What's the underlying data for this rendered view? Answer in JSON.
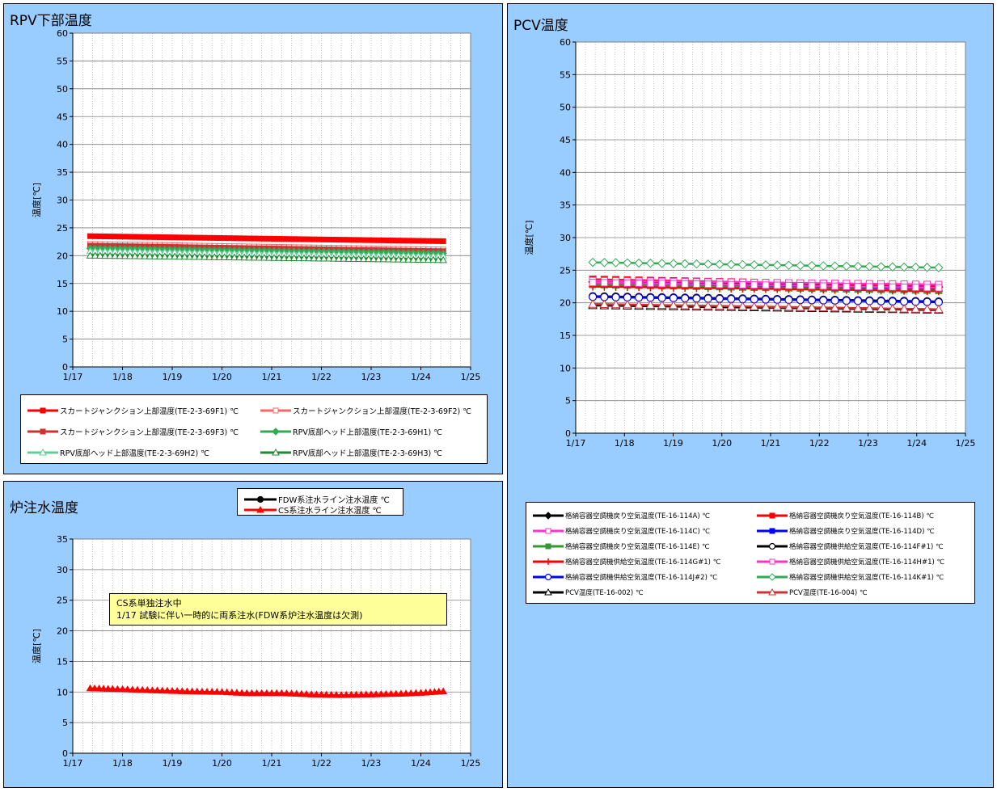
{
  "rpv_panel": {
    "title": "RPV下部温度"
  },
  "pcv_panel": {
    "title": "PCV温度"
  },
  "water_panel": {
    "title": "炉注水温度",
    "note_lines": [
      "CS系単独注水中",
      "1/17 試験に伴い一時的に両系注水(FDW系炉注水温度は欠測)"
    ]
  },
  "chart_data": [
    {
      "type": "line",
      "id": "rpv",
      "ylabel": "温度[℃]",
      "ylim": [
        0,
        60
      ],
      "y_ticks": [
        0,
        5,
        10,
        15,
        20,
        25,
        30,
        35,
        40,
        45,
        50,
        55,
        60
      ],
      "x_ticks": [
        "1/17",
        "1/18",
        "1/19",
        "1/20",
        "1/21",
        "1/22",
        "1/23",
        "1/24",
        "1/25"
      ],
      "xlim": [
        0,
        8
      ],
      "grid": true,
      "legend": "bottom",
      "series": [
        {
          "name": "スカートジャンクション上部温度(TE-2-3-69F1) ℃",
          "color": "#ff0000",
          "marker": "square",
          "x": [
            0.35,
            7.45
          ],
          "y": [
            23.5,
            22.6
          ]
        },
        {
          "name": "スカートジャンクション上部温度(TE-2-3-69F2) ℃",
          "color": "#ff6666",
          "marker": "square-open",
          "x": [
            0.35,
            7.45
          ],
          "y": [
            22.1,
            21.1
          ]
        },
        {
          "name": "スカートジャンクション上部温度(TE-2-3-69F3) ℃",
          "color": "#cc3333",
          "marker": "square",
          "x": [
            0.35,
            7.45
          ],
          "y": [
            21.8,
            20.8
          ]
        },
        {
          "name": "RPV底部ヘッド上部温度(TE-2-3-69H1) ℃",
          "color": "#33aa55",
          "marker": "diamond",
          "x": [
            0.35,
            7.45
          ],
          "y": [
            21.3,
            20.4
          ]
        },
        {
          "name": "RPV底部ヘッド上部温度(TE-2-3-69H2) ℃",
          "color": "#66cc99",
          "marker": "triangle-open",
          "x": [
            0.35,
            7.45
          ],
          "y": [
            20.8,
            19.9
          ]
        },
        {
          "name": "RPV底部ヘッド上部温度(TE-2-3-69H3) ℃",
          "color": "#228833",
          "marker": "triangle-open",
          "x": [
            0.35,
            7.45
          ],
          "y": [
            20.0,
            19.2
          ]
        }
      ]
    },
    {
      "type": "line",
      "id": "pcv",
      "ylabel": "温度[℃]",
      "ylim": [
        0,
        60
      ],
      "y_ticks": [
        0,
        5,
        10,
        15,
        20,
        25,
        30,
        35,
        40,
        45,
        50,
        55,
        60
      ],
      "x_ticks": [
        "1/17",
        "1/18",
        "1/19",
        "1/20",
        "1/21",
        "1/22",
        "1/23",
        "1/24",
        "1/25"
      ],
      "xlim": [
        0,
        8
      ],
      "grid": true,
      "legend": "bottom",
      "series": [
        {
          "name": "格納容器空調機戻り空気温度(TE-16-114A) ℃",
          "color": "#000000",
          "marker": "diamond",
          "x": [
            0.35,
            7.45
          ],
          "y": [
            23.2,
            22.4
          ]
        },
        {
          "name": "格納容器空調機戻り空気温度(TE-16-114B) ℃",
          "color": "#ff0000",
          "marker": "square",
          "x": [
            0.35,
            7.45
          ],
          "y": [
            23.6,
            22.6
          ]
        },
        {
          "name": "格納容器空調機戻り空気温度(TE-16-114C) ℃",
          "color": "#ff33cc",
          "marker": "square-open",
          "x": [
            0.35,
            7.45
          ],
          "y": [
            23.4,
            22.8
          ]
        },
        {
          "name": "格納容器空調機戻り空気温度(TE-16-114D) ℃",
          "color": "#0000ff",
          "marker": "square",
          "x": [
            0.35,
            7.45
          ],
          "y": [
            23.0,
            22.2
          ]
        },
        {
          "name": "格納容器空調機戻り空気温度(TE-16-114E) ℃",
          "color": "#339933",
          "marker": "square",
          "x": [
            0.35,
            7.45
          ],
          "y": [
            22.8,
            21.9
          ]
        },
        {
          "name": "格納容器空調機供給空気温度(TE-16-114F#1) ℃",
          "color": "#000000",
          "marker": "circle-open",
          "x": [
            0.35,
            7.45
          ],
          "y": [
            21.0,
            20.2
          ]
        },
        {
          "name": "格納容器空調機供給空気温度(TE-16-114G#1) ℃",
          "color": "#ff0000",
          "marker": "plus",
          "x": [
            0.35,
            7.45
          ],
          "y": [
            22.5,
            21.8
          ]
        },
        {
          "name": "格納容器空調機供給空気温度(TE-16-114H#1) ℃",
          "color": "#ff33cc",
          "marker": "square-open",
          "x": [
            0.35,
            7.45
          ],
          "y": [
            23.1,
            22.3
          ]
        },
        {
          "name": "格納容器空調機供給空気温度(TE-16-114J#2) ℃",
          "color": "#0000ff",
          "marker": "circle-open",
          "x": [
            0.35,
            7.45
          ],
          "y": [
            20.9,
            20.1
          ]
        },
        {
          "name": "格納容器空調機供給空気温度(TE-16-114K#1) ℃",
          "color": "#33aa55",
          "marker": "diamond-open",
          "x": [
            0.35,
            7.45
          ],
          "y": [
            26.2,
            25.4
          ]
        },
        {
          "name": "PCV温度(TE-16-002) ℃",
          "color": "#000000",
          "marker": "triangle-open",
          "x": [
            0.35,
            7.45
          ],
          "y": [
            19.6,
            18.9
          ]
        },
        {
          "name": "PCV温度(TE-16-004) ℃",
          "color": "#cc3333",
          "marker": "triangle-open",
          "x": [
            0.35,
            7.45
          ],
          "y": [
            19.8,
            19.0
          ]
        }
      ]
    },
    {
      "type": "line",
      "id": "water",
      "ylabel": "温度[℃]",
      "ylim": [
        0,
        35
      ],
      "y_ticks": [
        0,
        5,
        10,
        15,
        20,
        25,
        30,
        35
      ],
      "x_ticks": [
        "1/17",
        "1/18",
        "1/19",
        "1/20",
        "1/21",
        "1/22",
        "1/23",
        "1/24",
        "1/25"
      ],
      "xlim": [
        0,
        8
      ],
      "grid": true,
      "legend": "top",
      "series": [
        {
          "name": "FDW系注水ライン注水温度 ℃",
          "color": "#000000",
          "marker": "circle",
          "x": [],
          "y": []
        },
        {
          "name": "CS系注水ライン注水温度 ℃",
          "color": "#ff0000",
          "marker": "triangle",
          "x": [
            0.35,
            0.8,
            1.5,
            2.3,
            3.0,
            3.5,
            4.2,
            4.8,
            5.4,
            6.0,
            6.6,
            7.1,
            7.45
          ],
          "y": [
            10.6,
            10.5,
            10.3,
            10.1,
            10.0,
            9.8,
            9.8,
            9.6,
            9.5,
            9.6,
            9.7,
            9.9,
            10.1
          ]
        }
      ]
    }
  ]
}
